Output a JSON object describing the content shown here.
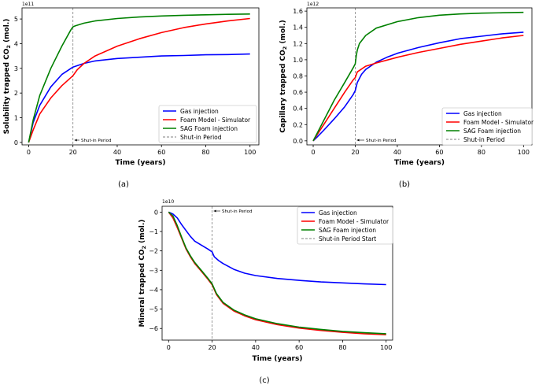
{
  "chart_data": [
    {
      "type": "line",
      "caption": "(a)",
      "ylabel": "Solubility trapped CO",
      "ylabel_sub": "2",
      "ylabel_unit": " (mol.)",
      "xlabel": "Time (years)",
      "multiplier": "1e11",
      "xlim": [
        -3,
        104
      ],
      "ylim": [
        -0.1,
        5.45
      ],
      "xticks": [
        0,
        20,
        40,
        60,
        80,
        100
      ],
      "yticks": [
        0,
        1,
        2,
        3,
        4,
        5
      ],
      "ytick_labels": [
        "0",
        "1",
        "2",
        "3",
        "4",
        "5"
      ],
      "legend_position": "lower-right",
      "vline": {
        "x": 20,
        "label": "Shut-in Period"
      },
      "annotation": {
        "text": "Shut-in Period",
        "x": 20,
        "y": 0
      },
      "series": [
        {
          "name": "Gas injection",
          "color": "#0000ff",
          "x": [
            0,
            2,
            5,
            10,
            15,
            20,
            25,
            30,
            40,
            50,
            60,
            70,
            80,
            90,
            100
          ],
          "y": [
            0,
            0.8,
            1.5,
            2.25,
            2.75,
            3.05,
            3.2,
            3.3,
            3.4,
            3.45,
            3.5,
            3.52,
            3.55,
            3.56,
            3.58
          ]
        },
        {
          "name": "Foam Model - Simulator",
          "color": "#ff0000",
          "x": [
            0,
            2,
            5,
            10,
            15,
            20,
            22,
            25,
            30,
            40,
            50,
            60,
            70,
            80,
            90,
            100
          ],
          "y": [
            0,
            0.5,
            1.15,
            1.8,
            2.3,
            2.7,
            2.95,
            3.2,
            3.5,
            3.9,
            4.2,
            4.45,
            4.65,
            4.8,
            4.92,
            5.02
          ]
        },
        {
          "name": "SAG Foam injection",
          "color": "#008000",
          "x": [
            0,
            2,
            5,
            10,
            15,
            19,
            20,
            21,
            25,
            30,
            40,
            50,
            60,
            70,
            80,
            90,
            100
          ],
          "y": [
            0,
            0.9,
            1.9,
            3.0,
            3.9,
            4.55,
            4.68,
            4.72,
            4.83,
            4.92,
            5.02,
            5.08,
            5.12,
            5.15,
            5.17,
            5.19,
            5.2
          ]
        }
      ]
    },
    {
      "type": "line",
      "caption": "(b)",
      "ylabel": "Capillary trapped CO",
      "ylabel_sub": "2",
      "ylabel_unit": " (mol.)",
      "xlabel": "Time (years)",
      "multiplier": "1e12",
      "xlim": [
        -3,
        104
      ],
      "ylim": [
        -0.05,
        1.64
      ],
      "xticks": [
        0,
        20,
        40,
        60,
        80,
        100
      ],
      "yticks": [
        0,
        0.2,
        0.4,
        0.6,
        0.8,
        1.0,
        1.2,
        1.4,
        1.6
      ],
      "ytick_labels": [
        "0.0",
        "0.2",
        "0.4",
        "0.6",
        "0.8",
        "1.0",
        "1.2",
        "1.4",
        "1.6"
      ],
      "legend_position": "lower-right",
      "vline": {
        "x": 20,
        "label": "Shut-in Period"
      },
      "annotation": {
        "text": "Shut-in Period",
        "x": 20,
        "y": 0
      },
      "series": [
        {
          "name": "Gas injection",
          "color": "#0000ff",
          "x": [
            0,
            2,
            5,
            10,
            15,
            19,
            20,
            21,
            23,
            25,
            30,
            35,
            40,
            50,
            60,
            70,
            80,
            90,
            100
          ],
          "y": [
            0,
            0.05,
            0.13,
            0.27,
            0.42,
            0.57,
            0.62,
            0.72,
            0.82,
            0.88,
            0.97,
            1.03,
            1.08,
            1.15,
            1.21,
            1.26,
            1.29,
            1.32,
            1.34
          ]
        },
        {
          "name": "Foam Model - Simulator",
          "color": "#ff0000",
          "x": [
            0,
            2,
            5,
            10,
            15,
            19,
            20,
            21,
            25,
            30,
            40,
            50,
            60,
            70,
            80,
            90,
            100
          ],
          "y": [
            0,
            0.08,
            0.2,
            0.4,
            0.6,
            0.75,
            0.78,
            0.85,
            0.92,
            0.96,
            1.03,
            1.09,
            1.14,
            1.19,
            1.23,
            1.27,
            1.3
          ]
        },
        {
          "name": "SAG Foam injection",
          "color": "#008000",
          "x": [
            0,
            2,
            5,
            10,
            15,
            19,
            20,
            20.5,
            21,
            22,
            25,
            30,
            40,
            50,
            60,
            70,
            80,
            90,
            100
          ],
          "y": [
            0,
            0.1,
            0.25,
            0.5,
            0.72,
            0.9,
            0.95,
            1.05,
            1.12,
            1.2,
            1.3,
            1.39,
            1.47,
            1.52,
            1.55,
            1.565,
            1.575,
            1.58,
            1.585
          ]
        }
      ]
    },
    {
      "type": "line",
      "caption": "(c)",
      "ylabel": "Mineral trapped CO",
      "ylabel_sub": "2",
      "ylabel_unit": " (mol.)",
      "xlabel": "Time (years)",
      "multiplier": "1e10",
      "xlim": [
        -3,
        103
      ],
      "ylim": [
        -6.6,
        0.3
      ],
      "xticks": [
        0,
        20,
        40,
        60,
        80,
        100
      ],
      "yticks": [
        0,
        -1,
        -2,
        -3,
        -4,
        -5,
        -6
      ],
      "ytick_labels": [
        "0",
        "−1",
        "−2",
        "−3",
        "−4",
        "−5",
        "−6"
      ],
      "legend_position": "upper-right",
      "vline": {
        "x": 20,
        "label": "Shut-in Period Start"
      },
      "annotation": {
        "text": "Shut-in Period",
        "x": 20,
        "y": 0
      },
      "series": [
        {
          "name": "Gas injection",
          "color": "#0000ff",
          "x": [
            0,
            2,
            4,
            6,
            8,
            10,
            12,
            15,
            18,
            20,
            21,
            23,
            25,
            30,
            35,
            40,
            50,
            60,
            70,
            80,
            90,
            100
          ],
          "y": [
            0,
            -0.1,
            -0.3,
            -0.65,
            -0.95,
            -1.25,
            -1.5,
            -1.7,
            -1.9,
            -2.05,
            -2.3,
            -2.5,
            -2.65,
            -2.95,
            -3.15,
            -3.27,
            -3.42,
            -3.52,
            -3.6,
            -3.65,
            -3.7,
            -3.74
          ]
        },
        {
          "name": "Foam Model - Simulator",
          "color": "#ff0000",
          "x": [
            0,
            2,
            4,
            6,
            8,
            10,
            12,
            15,
            18,
            20,
            22,
            25,
            30,
            35,
            40,
            50,
            60,
            70,
            80,
            90,
            100
          ],
          "y": [
            0,
            -0.3,
            -0.8,
            -1.35,
            -1.9,
            -2.3,
            -2.65,
            -3.05,
            -3.45,
            -3.75,
            -4.25,
            -4.7,
            -5.1,
            -5.35,
            -5.55,
            -5.8,
            -5.98,
            -6.1,
            -6.2,
            -6.27,
            -6.32
          ]
        },
        {
          "name": "SAG Foam injection",
          "color": "#008000",
          "x": [
            0,
            2,
            4,
            6,
            8,
            10,
            12,
            15,
            18,
            20,
            22,
            25,
            30,
            35,
            40,
            50,
            60,
            70,
            80,
            90,
            100
          ],
          "y": [
            0,
            -0.2,
            -0.7,
            -1.3,
            -1.85,
            -2.25,
            -2.6,
            -3.0,
            -3.4,
            -3.7,
            -4.2,
            -4.65,
            -5.05,
            -5.3,
            -5.5,
            -5.75,
            -5.93,
            -6.05,
            -6.15,
            -6.22,
            -6.27
          ]
        }
      ]
    }
  ]
}
